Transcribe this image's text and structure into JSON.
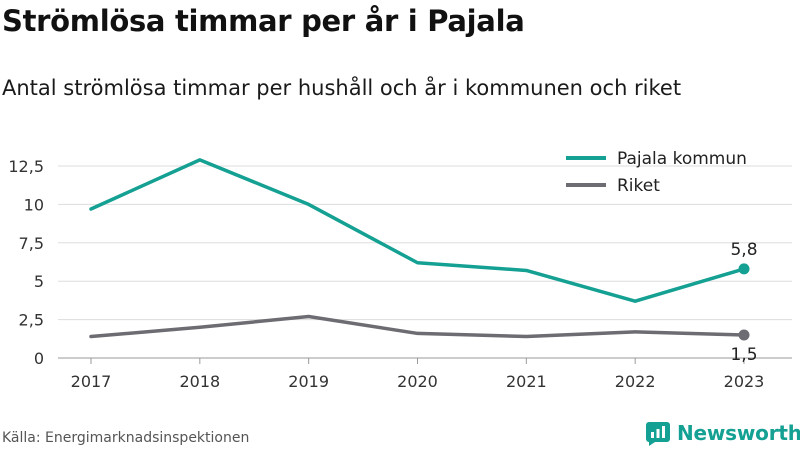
{
  "header": {
    "title": "Strömlösa timmar per år i Pajala",
    "subtitle": "Antal strömlösa timmar per hushåll och år i kommunen och riket"
  },
  "footer": {
    "source": "Källa: Energimarknadsinspektionen",
    "brand": "Newsworthy",
    "brand_icon": "newsworthy-logo-icon",
    "brand_color": "#14a092"
  },
  "chart_data": {
    "type": "line",
    "title": "Strömlösa timmar per år i Pajala",
    "subtitle": "Antal strömlösa timmar per hushåll och år i kommunen och riket",
    "xlabel": "",
    "ylabel": "",
    "categories": [
      "2017",
      "2018",
      "2019",
      "2020",
      "2021",
      "2022",
      "2023"
    ],
    "ylim": [
      0,
      12.5
    ],
    "yticks": [
      0,
      2.5,
      5,
      7.5,
      10,
      12.5
    ],
    "ytick_labels": [
      "0",
      "2,5",
      "5",
      "7,5",
      "10",
      "12,5"
    ],
    "grid": "horizontal",
    "legend": "top-right",
    "series": [
      {
        "name": "Pajala kommun",
        "color": "#14a092",
        "values": [
          9.7,
          12.9,
          10.0,
          6.2,
          5.7,
          3.7,
          5.8
        ],
        "end_label": "5,8"
      },
      {
        "name": "Riket",
        "color": "#6d6c72",
        "values": [
          1.4,
          2.0,
          2.7,
          1.6,
          1.4,
          1.7,
          1.5
        ],
        "end_label": "1,5"
      }
    ]
  }
}
